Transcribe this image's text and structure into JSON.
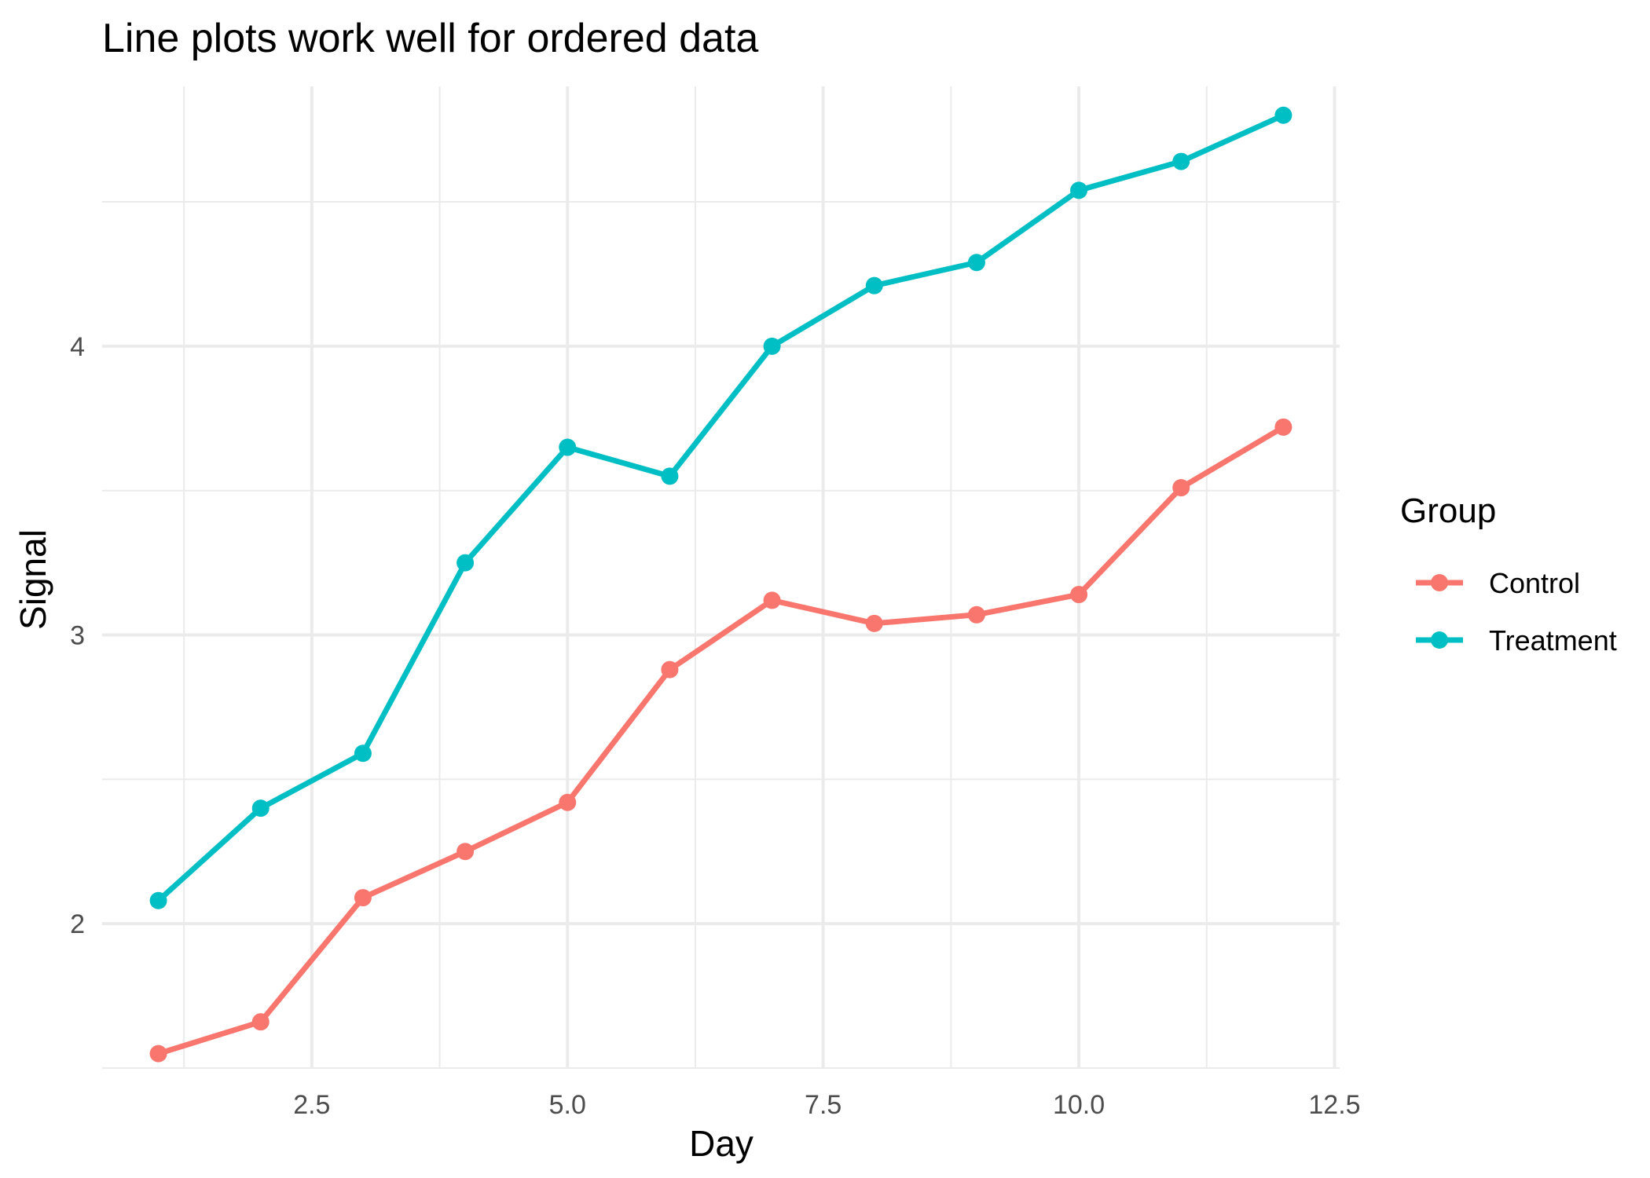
{
  "chart_data": {
    "type": "line",
    "title": "Line plots work well for ordered data",
    "xlabel": "Day",
    "ylabel": "Signal",
    "xlim": [
      0.45,
      12.55
    ],
    "ylim": [
      1.5,
      4.9
    ],
    "x_ticks": [
      2.5,
      5.0,
      7.5,
      10.0,
      12.5
    ],
    "x_tick_labels": [
      "2.5",
      "5.0",
      "7.5",
      "10.0",
      "12.5"
    ],
    "x_minor_ticks": [
      1.25,
      3.75,
      6.25,
      8.75,
      11.25
    ],
    "y_ticks": [
      2,
      3,
      4
    ],
    "y_tick_labels": [
      "2",
      "3",
      "4"
    ],
    "y_minor_ticks": [
      1.5,
      2.5,
      3.5,
      4.5
    ],
    "grid": true,
    "legend": {
      "title": "Group",
      "position": "right"
    },
    "x": [
      1,
      2,
      3,
      4,
      5,
      6,
      7,
      8,
      9,
      10,
      11,
      12
    ],
    "series": [
      {
        "name": "Control",
        "color": "#F8766D",
        "values": [
          1.55,
          1.66,
          2.09,
          2.25,
          2.42,
          2.88,
          3.12,
          3.04,
          3.07,
          3.14,
          3.51,
          3.72
        ]
      },
      {
        "name": "Treatment",
        "color": "#00BFC4",
        "values": [
          2.08,
          2.4,
          2.59,
          3.25,
          3.65,
          3.55,
          4.0,
          4.21,
          4.29,
          4.54,
          4.64,
          4.8
        ]
      }
    ]
  }
}
